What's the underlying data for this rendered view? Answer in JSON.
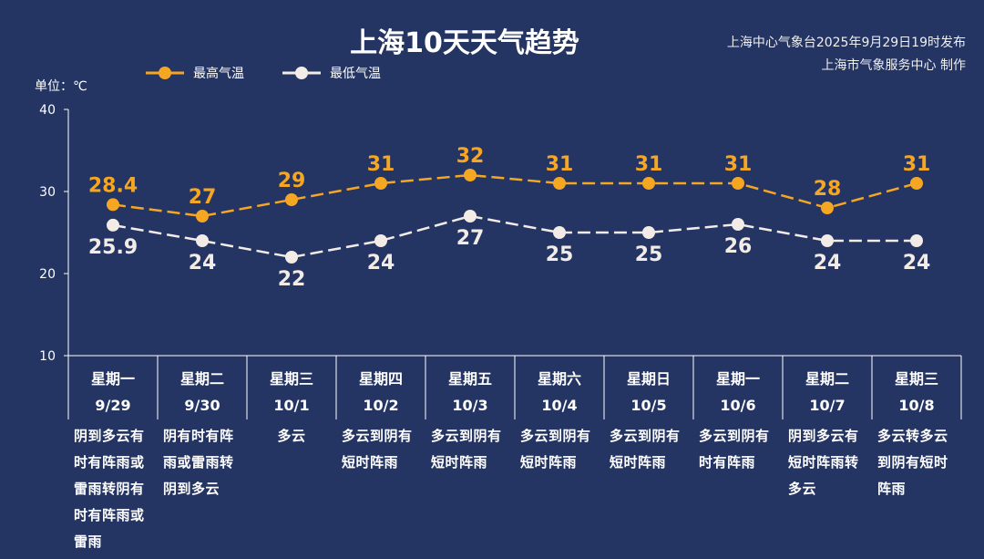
{
  "chart_data": {
    "type": "line",
    "title": "上海10天天气趋势",
    "source_lines": [
      "上海中心气象台2025年9月29日19时发布",
      "上海市气象服务中心 制作"
    ],
    "unit_label": "单位：℃",
    "ylim": [
      10,
      40
    ],
    "yticks": [
      10,
      20,
      30,
      40
    ],
    "grid": false,
    "legend_position": "top-left",
    "categories": [
      {
        "weekday": "星期一",
        "date": "9/29",
        "weather": "阴到多云有时有阵雨或雷雨转阴有时有阵雨或雷雨"
      },
      {
        "weekday": "星期二",
        "date": "9/30",
        "weather": "阴有时有阵雨或雷雨转阴到多云"
      },
      {
        "weekday": "星期三",
        "date": "10/1",
        "weather": "多云"
      },
      {
        "weekday": "星期四",
        "date": "10/2",
        "weather": "多云到阴有短时阵雨"
      },
      {
        "weekday": "星期五",
        "date": "10/3",
        "weather": "多云到阴有短时阵雨"
      },
      {
        "weekday": "星期六",
        "date": "10/4",
        "weather": "多云到阴有短时阵雨"
      },
      {
        "weekday": "星期日",
        "date": "10/5",
        "weather": "多云到阴有短时阵雨"
      },
      {
        "weekday": "星期一",
        "date": "10/6",
        "weather": "多云到阴有时有阵雨"
      },
      {
        "weekday": "星期二",
        "date": "10/7",
        "weather": "阴到多云有短时阵雨转多云"
      },
      {
        "weekday": "星期三",
        "date": "10/8",
        "weather": "多云转多云到阴有短时阵雨"
      }
    ],
    "series": [
      {
        "name": "最高气温",
        "color": "#f5a623",
        "values": [
          28.4,
          27,
          29,
          31,
          32,
          31,
          31,
          31,
          28,
          31
        ],
        "labels": [
          "28.4",
          "27",
          "29",
          "31",
          "32",
          "31",
          "31",
          "31",
          "28",
          "31"
        ]
      },
      {
        "name": "最低气温",
        "color": "#f3ece6",
        "values": [
          25.9,
          24,
          22,
          24,
          27,
          25,
          25,
          26,
          24,
          24
        ],
        "labels": [
          "25.9",
          "24",
          "22",
          "24",
          "27",
          "25",
          "25",
          "26",
          "24",
          "24"
        ]
      }
    ]
  }
}
